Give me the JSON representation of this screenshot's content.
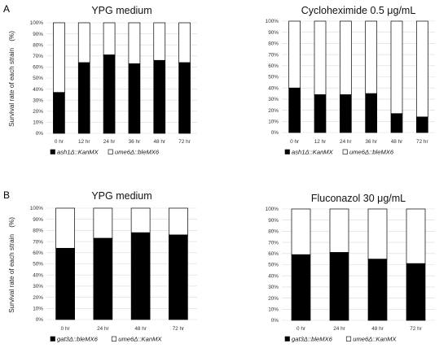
{
  "panel_labels": [
    "A",
    "B"
  ],
  "y_axis_label": "Survival rate of each strain　(%)",
  "colors": {
    "primary_fill": "#000000",
    "secondary_fill": "#ffffff",
    "outline": "#000000",
    "grid": "#d9d9d9"
  },
  "chart_data": [
    {
      "type": "bar",
      "stacked": "percent",
      "panel": "A",
      "title": "YPG medium",
      "categories": [
        "0 hr",
        "12 hr",
        "24 hr",
        "36 hr",
        "48 hr",
        "72 hr"
      ],
      "series": [
        {
          "name": "ash1Δ::KanMX",
          "values": [
            37,
            64,
            71,
            63,
            66,
            64
          ]
        },
        {
          "name": "ume6Δ::bleMX6",
          "values": [
            63,
            36,
            29,
            37,
            34,
            36
          ]
        }
      ],
      "ylim": [
        0,
        100
      ],
      "yticks": [
        "0%",
        "10%",
        "20%",
        "30%",
        "40%",
        "50%",
        "60%",
        "70%",
        "80%",
        "90%",
        "100%"
      ],
      "grid": true,
      "legend": "bottom"
    },
    {
      "type": "bar",
      "stacked": "percent",
      "panel": "A",
      "title": "Cycloheximide 0.5 μg/mL",
      "categories": [
        "0 hr",
        "12 hr",
        "24 hr",
        "36 hr",
        "48 hr",
        "72 hr"
      ],
      "series": [
        {
          "name": "ash1Δ::KanMX",
          "values": [
            40,
            34,
            34,
            35,
            17,
            14
          ]
        },
        {
          "name": "ume6Δ::bleMX6",
          "values": [
            60,
            66,
            66,
            65,
            83,
            86
          ]
        }
      ],
      "ylim": [
        0,
        100
      ],
      "yticks": [
        "0%",
        "10%",
        "20%",
        "30%",
        "40%",
        "50%",
        "60%",
        "70%",
        "80%",
        "90%",
        "100%"
      ],
      "grid": true,
      "legend": "bottom"
    },
    {
      "type": "bar",
      "stacked": "percent",
      "panel": "B",
      "title": "YPG medium",
      "categories": [
        "0 hr",
        "24 hr",
        "48 hr",
        "72 hr"
      ],
      "series": [
        {
          "name": "gat3Δ::bleMX6",
          "values": [
            64,
            73,
            78,
            76
          ]
        },
        {
          "name": "ume6Δ::KanMX",
          "values": [
            36,
            27,
            22,
            24
          ]
        }
      ],
      "ylim": [
        0,
        100
      ],
      "yticks": [
        "0%",
        "10%",
        "20%",
        "30%",
        "40%",
        "50%",
        "60%",
        "70%",
        "80%",
        "90%",
        "100%"
      ],
      "grid": true,
      "legend": "bottom"
    },
    {
      "type": "bar",
      "stacked": "percent",
      "panel": "B",
      "title": "Fluconazol 30 μg/mL",
      "categories": [
        "0 hr",
        "24 hr",
        "48 hr",
        "72 hr"
      ],
      "series": [
        {
          "name": "gat3Δ::bleMX6",
          "values": [
            59,
            61,
            55,
            51
          ]
        },
        {
          "name": "ume6Δ::KanMX",
          "values": [
            41,
            39,
            45,
            49
          ]
        }
      ],
      "ylim": [
        0,
        100
      ],
      "yticks": [
        "0%",
        "10%",
        "20%",
        "30%",
        "40%",
        "50%",
        "60%",
        "70%",
        "80%",
        "90%",
        "100%"
      ],
      "grid": true,
      "legend": "bottom"
    }
  ]
}
